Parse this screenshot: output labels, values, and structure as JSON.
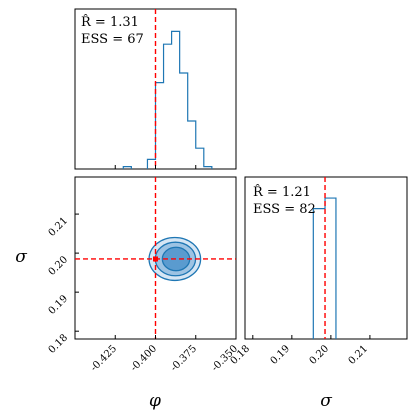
{
  "chart_data": {
    "type": "corner",
    "colors": {
      "hist": "#1f77b4",
      "truth": "#ff0000",
      "contour_fill": [
        "#d6e6f4",
        "#9dc3e3",
        "#5a9bcf"
      ]
    },
    "parameters": [
      {
        "symbol": "φ",
        "range": [
          -0.45,
          -0.35
        ],
        "ticks": [
          "-0.425",
          "-0.400",
          "-0.375",
          "-0.350"
        ],
        "tick_values": [
          -0.425,
          -0.4,
          -0.375,
          -0.35
        ],
        "truth": -0.4
      },
      {
        "symbol": "σ",
        "range": [
          0.178,
          0.2195
        ],
        "ticks": [
          "0.18",
          "0.19",
          "0.20",
          "0.21"
        ],
        "tick_values": [
          0.18,
          0.19,
          0.2,
          0.21
        ],
        "truth": 0.1985
      }
    ],
    "marginals": [
      {
        "parameter": "φ",
        "rhat": "R̂ = 1.31",
        "ess": "ESS = 67",
        "bins": [
          {
            "x0": -0.42,
            "x1": -0.415,
            "h": 0.015
          },
          {
            "x0": -0.405,
            "x1": -0.4,
            "h": 0.06
          },
          {
            "x0": -0.4,
            "x1": -0.395,
            "h": 0.54
          },
          {
            "x0": -0.395,
            "x1": -0.39,
            "h": 0.78
          },
          {
            "x0": -0.39,
            "x1": -0.385,
            "h": 0.86
          },
          {
            "x0": -0.385,
            "x1": -0.38,
            "h": 0.6
          },
          {
            "x0": -0.38,
            "x1": -0.375,
            "h": 0.3
          },
          {
            "x0": -0.375,
            "x1": -0.37,
            "h": 0.13
          },
          {
            "x0": -0.37,
            "x1": -0.365,
            "h": 0.015
          }
        ]
      },
      {
        "parameter": "σ",
        "rhat": "R̂ = 1.21",
        "ess": "ESS = 82",
        "bins": [
          {
            "x0": 0.1955,
            "x1": 0.1985,
            "h": 0.805
          },
          {
            "x0": 0.1985,
            "x1": 0.2013,
            "h": 0.87
          }
        ]
      }
    ],
    "joint": {
      "center": [
        -0.388,
        0.1985
      ],
      "contours": [
        {
          "rx": 0.016,
          "ry": 0.0055
        },
        {
          "rx": 0.0125,
          "ry": 0.0043
        },
        {
          "rx": 0.0085,
          "ry": 0.003
        }
      ]
    }
  }
}
